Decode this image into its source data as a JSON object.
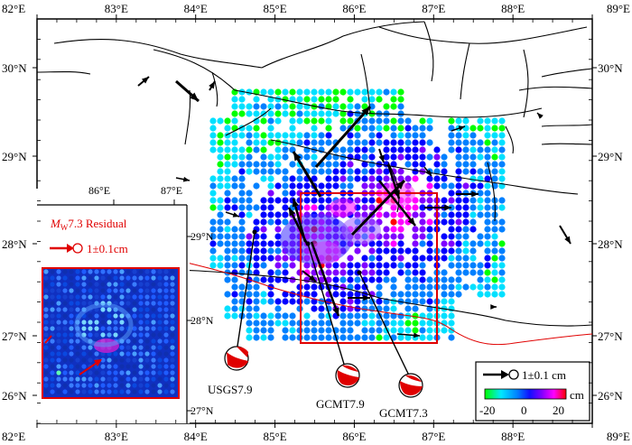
{
  "map": {
    "lon_ticks": [
      "82°E",
      "83°E",
      "84°E",
      "85°E",
      "86°E",
      "87°E",
      "88°E",
      "89°E"
    ],
    "lat_ticks": [
      "26°N",
      "27°N",
      "28°N",
      "29°N",
      "30°N"
    ],
    "inset_lon_ticks": [
      "86°E",
      "87°E"
    ],
    "inset_lat_ticks": [
      "27°N",
      "28°N",
      "29°N"
    ]
  },
  "focal_mechanisms": [
    {
      "label": "USGS7.9"
    },
    {
      "label": "GCMT7.9"
    },
    {
      "label": "GCMT7.3"
    }
  ],
  "residual_panel": {
    "title_prefix": "M",
    "title_subscript": "W",
    "title_suffix": "7.3 Residual",
    "scale_label": "1±0.1cm"
  },
  "legend": {
    "arrow_label": "1±0.1 cm",
    "unit": "cm",
    "ticks": [
      "-20",
      "0",
      "20"
    ]
  },
  "colors": {
    "fault": "#000000",
    "rectangle": "#e00000",
    "border": "#e00000",
    "colorbar": [
      "#00ff00",
      "#00e0ff",
      "#0080ff",
      "#0000ff",
      "#8000ff",
      "#ff00ff",
      "#ff0000"
    ]
  }
}
